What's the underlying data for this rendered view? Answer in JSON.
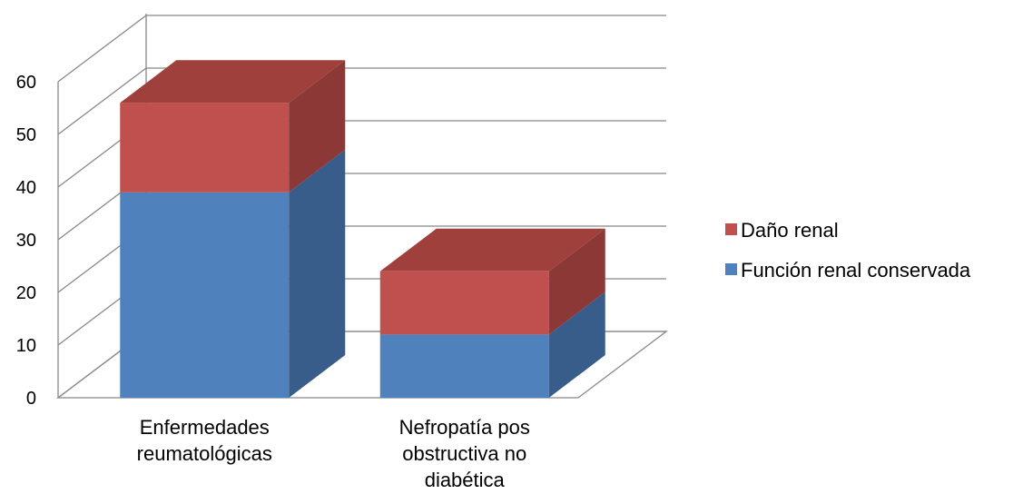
{
  "chart_data": {
    "type": "bar",
    "stacked": true,
    "three_d": true,
    "categories": [
      [
        "Enfermedades",
        "reumatológicas"
      ],
      [
        "Nefropatía pos",
        "obstructiva no",
        "diabética"
      ]
    ],
    "series": [
      {
        "name": "Función renal conservada",
        "values": [
          39,
          12
        ],
        "color": "#4f81bd",
        "top_color": "#3f6aa0",
        "side_color": "#385d8a"
      },
      {
        "name": "Daño renal",
        "values": [
          17,
          12
        ],
        "color": "#c0504d",
        "top_color": "#a0403d",
        "side_color": "#8c3836"
      }
    ],
    "legend_order": [
      "Daño renal",
      "Función renal conservada"
    ],
    "legend_position": "right",
    "ylim": [
      0,
      60
    ],
    "yticks": [
      0,
      10,
      20,
      30,
      40,
      50,
      60
    ],
    "grid": true,
    "xlabel": "",
    "ylabel": "",
    "title": ""
  }
}
